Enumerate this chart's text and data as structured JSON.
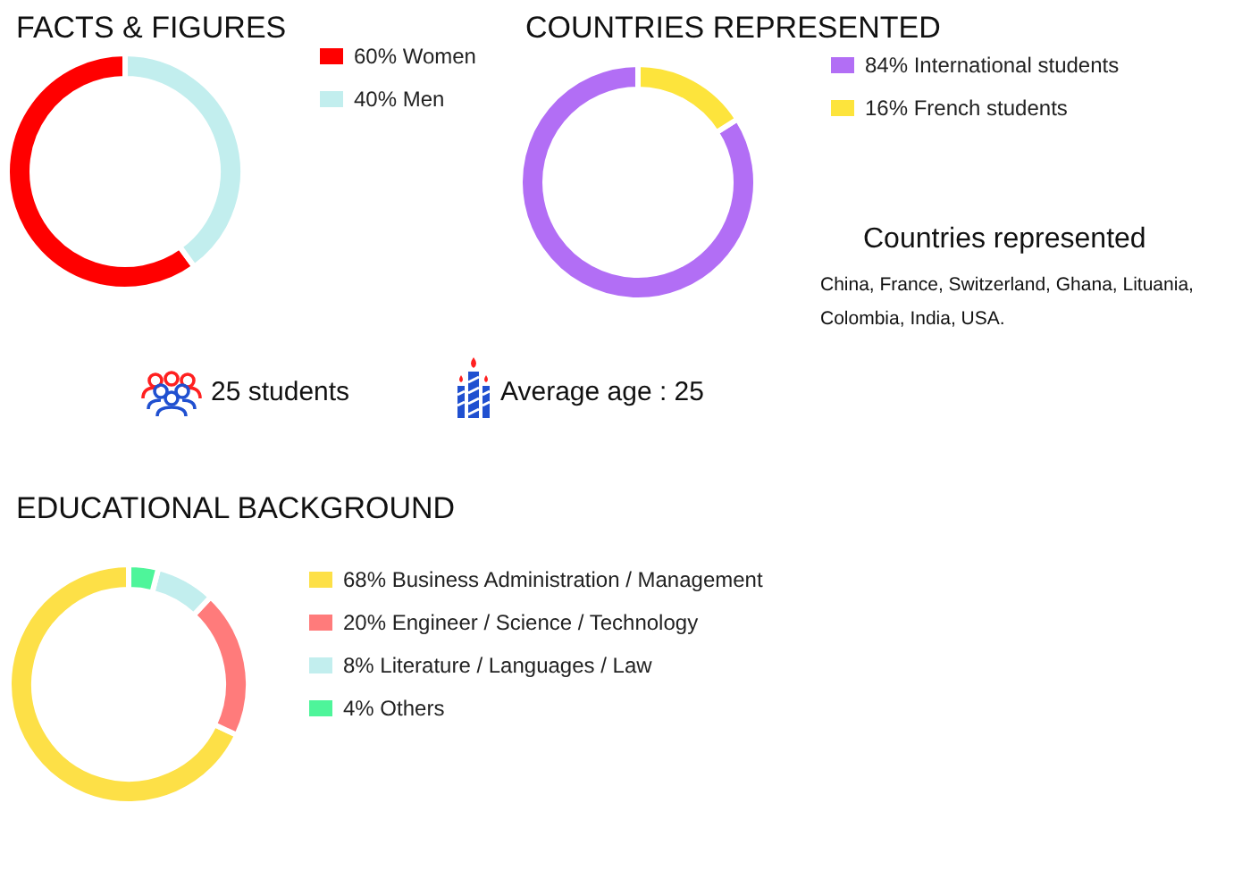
{
  "chart_data": [
    {
      "type": "donut",
      "title": "FACTS & FIGURES",
      "categories": [
        "60% Women",
        "40% Men"
      ],
      "values": [
        60,
        40
      ],
      "colors": [
        "#ff0000",
        "#c2eeee"
      ],
      "legend": "right"
    },
    {
      "type": "donut",
      "title": "COUNTRIES REPRESENTED",
      "categories": [
        "84% International students",
        "16% French students"
      ],
      "values": [
        84,
        16
      ],
      "colors": [
        "#b26ef5",
        "#fde43c"
      ],
      "legend": "right",
      "annotations": [
        "Countries represented",
        "China, France, Switzerland, Ghana, Lituania,\nColombia, India, USA."
      ]
    },
    {
      "type": "other",
      "annotations": [
        "25 students",
        "Average age : 25"
      ]
    },
    {
      "type": "donut",
      "title": "EDUCATIONAL BACKGROUND",
      "categories": [
        "68% Business Administration / Management",
        "20% Engineer / Science / Technology",
        "8% Literature / Languages / Law",
        "4% Others"
      ],
      "values": [
        68,
        20,
        8,
        4
      ],
      "colors": [
        "#fde047",
        "#ff7b7b",
        "#c2eeee",
        "#4ef59a"
      ],
      "legend": "right"
    }
  ]
}
